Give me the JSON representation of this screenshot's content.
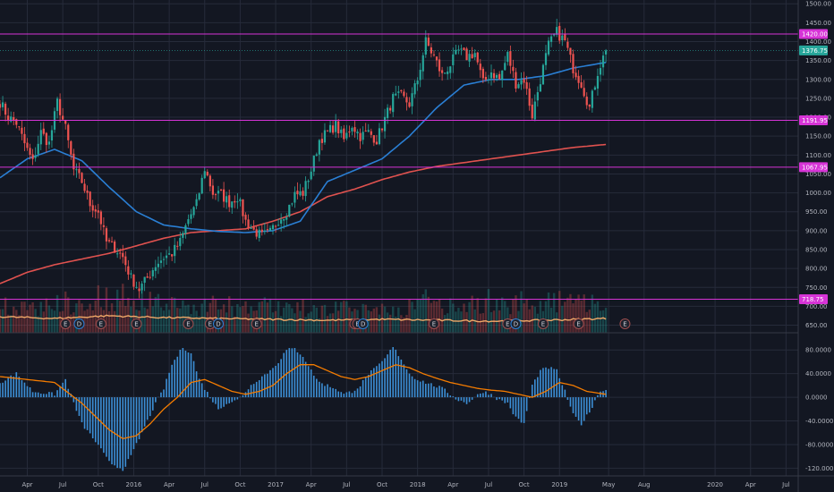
{
  "colors": {
    "background": "#131722",
    "grid": "#262b3a",
    "up": "#26a69a",
    "down": "#ef5350",
    "ma_fast": "#2a7fd4",
    "ma_slow": "#e0524f",
    "vol_ma": "#f0a868",
    "level": "#d633d6",
    "last_price": "#26a69a",
    "macd_line": "#f57c00",
    "macd_hist": "#3c8fd6"
  },
  "price_axis": {
    "min": 630,
    "max": 1510,
    "ticks": [
      "650.00",
      "700.00",
      "750.00",
      "800.00",
      "850.00",
      "900.00",
      "950.00",
      "1000.00",
      "1050.00",
      "1100.00",
      "1150.00",
      "1200.00",
      "1250.00",
      "1300.00",
      "1350.00",
      "1400.00",
      "1450.00",
      "1500.00"
    ]
  },
  "macd_axis": {
    "min": -130,
    "max": 100,
    "ticks": [
      "80.0000",
      "40.0000",
      "0.0000",
      "-40.0000",
      "-80.0000",
      "-120.0000"
    ]
  },
  "x_axis": {
    "ticks": [
      {
        "label": "Apr",
        "idx": 10
      },
      {
        "label": "Jul",
        "idx": 23
      },
      {
        "label": "Oct",
        "idx": 36
      },
      {
        "label": "2016",
        "idx": 49
      },
      {
        "label": "Apr",
        "idx": 62
      },
      {
        "label": "Jul",
        "idx": 75
      },
      {
        "label": "Oct",
        "idx": 88
      },
      {
        "label": "2017",
        "idx": 101
      },
      {
        "label": "Apr",
        "idx": 114
      },
      {
        "label": "Jul",
        "idx": 127
      },
      {
        "label": "Oct",
        "idx": 140
      },
      {
        "label": "2018",
        "idx": 153
      },
      {
        "label": "Apr",
        "idx": 166
      },
      {
        "label": "Jul",
        "idx": 179
      },
      {
        "label": "Oct",
        "idx": 192
      },
      {
        "label": "2019",
        "idx": 205
      },
      {
        "label": "May",
        "idx": 223
      },
      {
        "label": "Aug",
        "idx": 236
      },
      {
        "label": "2020",
        "idx": 262
      },
      {
        "label": "Apr",
        "idx": 275
      },
      {
        "label": "Jul",
        "idx": 288
      }
    ]
  },
  "levels": [
    {
      "label": "1420.00",
      "value": 1420
    },
    {
      "label": "1191.95",
      "value": 1191.95
    },
    {
      "label": "1067.95",
      "value": 1067.95
    },
    {
      "label": "718.75",
      "value": 718.75
    }
  ],
  "last_price": {
    "label": "1376.75",
    "value": 1376.75
  },
  "events": [
    {
      "label": "E",
      "idx": 24
    },
    {
      "label": "D",
      "idx": 29
    },
    {
      "label": "E",
      "idx": 37
    },
    {
      "label": "E",
      "idx": 50
    },
    {
      "label": "E",
      "idx": 69
    },
    {
      "label": "E",
      "idx": 77
    },
    {
      "label": "D",
      "idx": 80
    },
    {
      "label": "E",
      "idx": 94
    },
    {
      "label": "S",
      "idx": 130
    },
    {
      "label": "E",
      "idx": 131
    },
    {
      "label": "D",
      "idx": 133
    },
    {
      "label": "E",
      "idx": 159
    },
    {
      "label": "E",
      "idx": 186
    },
    {
      "label": "D",
      "idx": 189
    },
    {
      "label": "E",
      "idx": 199
    },
    {
      "label": "E",
      "idx": 212
    },
    {
      "label": "E",
      "idx": 229
    }
  ],
  "chart_data": {
    "type": "candlestick",
    "panes": [
      "price",
      "volume",
      "macd"
    ],
    "anchors": {
      "price": [
        [
          0,
          1240
        ],
        [
          3,
          1200
        ],
        [
          6,
          1185
        ],
        [
          9,
          1130
        ],
        [
          12,
          1080
        ],
        [
          15,
          1160
        ],
        [
          18,
          1130
        ],
        [
          21,
          1240
        ],
        [
          24,
          1170
        ],
        [
          27,
          1060
        ],
        [
          30,
          1030
        ],
        [
          33,
          970
        ],
        [
          36,
          950
        ],
        [
          39,
          870
        ],
        [
          42,
          855
        ],
        [
          45,
          830
        ],
        [
          48,
          775
        ],
        [
          51,
          745
        ],
        [
          54,
          775
        ],
        [
          57,
          810
        ],
        [
          60,
          830
        ],
        [
          63,
          840
        ],
        [
          66,
          870
        ],
        [
          69,
          930
        ],
        [
          72,
          970
        ],
        [
          75,
          1065
        ],
        [
          78,
          1000
        ],
        [
          81,
          995
        ],
        [
          84,
          975
        ],
        [
          87,
          990
        ],
        [
          90,
          925
        ],
        [
          93,
          900
        ],
        [
          96,
          885
        ],
        [
          99,
          895
        ],
        [
          102,
          930
        ],
        [
          105,
          950
        ],
        [
          108,
          995
        ],
        [
          111,
          1000
        ],
        [
          114,
          1060
        ],
        [
          117,
          1140
        ],
        [
          120,
          1160
        ],
        [
          123,
          1180
        ],
        [
          126,
          1140
        ],
        [
          129,
          1180
        ],
        [
          132,
          1150
        ],
        [
          135,
          1160
        ],
        [
          138,
          1140
        ],
        [
          141,
          1195
        ],
        [
          144,
          1250
        ],
        [
          147,
          1255
        ],
        [
          150,
          1235
        ],
        [
          153,
          1300
        ],
        [
          156,
          1400
        ],
        [
          159,
          1360
        ],
        [
          162,
          1310
        ],
        [
          165,
          1340
        ],
        [
          168,
          1375
        ],
        [
          171,
          1360
        ],
        [
          174,
          1370
        ],
        [
          177,
          1290
        ],
        [
          180,
          1320
        ],
        [
          183,
          1300
        ],
        [
          186,
          1365
        ],
        [
          189,
          1290
        ],
        [
          192,
          1300
        ],
        [
          195,
          1205
        ],
        [
          198,
          1300
        ],
        [
          201,
          1390
        ],
        [
          204,
          1425
        ],
        [
          207,
          1400
        ],
        [
          210,
          1330
        ],
        [
          213,
          1290
        ],
        [
          216,
          1225
        ],
        [
          219,
          1320
        ],
        [
          222,
          1376.75
        ]
      ],
      "ma_fast": [
        [
          0,
          1040
        ],
        [
          10,
          1090
        ],
        [
          20,
          1115
        ],
        [
          30,
          1085
        ],
        [
          40,
          1015
        ],
        [
          50,
          950
        ],
        [
          60,
          915
        ],
        [
          70,
          905
        ],
        [
          80,
          898
        ],
        [
          90,
          895
        ],
        [
          100,
          900
        ],
        [
          110,
          925
        ],
        [
          120,
          1030
        ],
        [
          130,
          1060
        ],
        [
          140,
          1090
        ],
        [
          150,
          1150
        ],
        [
          160,
          1225
        ],
        [
          170,
          1285
        ],
        [
          180,
          1300
        ],
        [
          190,
          1300
        ],
        [
          200,
          1310
        ],
        [
          210,
          1330
        ],
        [
          222,
          1345
        ]
      ],
      "ma_slow": [
        [
          0,
          760
        ],
        [
          10,
          790
        ],
        [
          20,
          810
        ],
        [
          30,
          825
        ],
        [
          40,
          840
        ],
        [
          50,
          860
        ],
        [
          60,
          880
        ],
        [
          70,
          895
        ],
        [
          80,
          900
        ],
        [
          90,
          905
        ],
        [
          100,
          925
        ],
        [
          110,
          950
        ],
        [
          120,
          990
        ],
        [
          130,
          1010
        ],
        [
          140,
          1035
        ],
        [
          150,
          1055
        ],
        [
          160,
          1070
        ],
        [
          170,
          1080
        ],
        [
          180,
          1090
        ],
        [
          190,
          1100
        ],
        [
          200,
          1110
        ],
        [
          210,
          1120
        ],
        [
          222,
          1128
        ]
      ],
      "macd_hist": [
        [
          0,
          25
        ],
        [
          6,
          40
        ],
        [
          12,
          10
        ],
        [
          20,
          5
        ],
        [
          24,
          30
        ],
        [
          27,
          -10
        ],
        [
          30,
          -45
        ],
        [
          35,
          -75
        ],
        [
          40,
          -110
        ],
        [
          45,
          -122
        ],
        [
          48,
          -100
        ],
        [
          52,
          -60
        ],
        [
          56,
          -20
        ],
        [
          60,
          15
        ],
        [
          63,
          55
        ],
        [
          67,
          85
        ],
        [
          70,
          75
        ],
        [
          73,
          30
        ],
        [
          77,
          0
        ],
        [
          80,
          -20
        ],
        [
          83,
          -10
        ],
        [
          87,
          -5
        ],
        [
          90,
          10
        ],
        [
          93,
          25
        ],
        [
          96,
          35
        ],
        [
          99,
          45
        ],
        [
          102,
          60
        ],
        [
          105,
          80
        ],
        [
          108,
          82
        ],
        [
          111,
          70
        ],
        [
          114,
          45
        ],
        [
          117,
          25
        ],
        [
          120,
          20
        ],
        [
          123,
          15
        ],
        [
          126,
          5
        ],
        [
          129,
          10
        ],
        [
          132,
          20
        ],
        [
          135,
          40
        ],
        [
          138,
          50
        ],
        [
          141,
          65
        ],
        [
          144,
          85
        ],
        [
          147,
          65
        ],
        [
          150,
          40
        ],
        [
          153,
          30
        ],
        [
          156,
          25
        ],
        [
          159,
          20
        ],
        [
          162,
          15
        ],
        [
          165,
          5
        ],
        [
          168,
          -5
        ],
        [
          171,
          -10
        ],
        [
          174,
          0
        ],
        [
          177,
          10
        ],
        [
          180,
          5
        ],
        [
          183,
          -5
        ],
        [
          186,
          -10
        ],
        [
          189,
          -35
        ],
        [
          192,
          -45
        ],
        [
          195,
          20
        ],
        [
          198,
          45
        ],
        [
          201,
          50
        ],
        [
          204,
          45
        ],
        [
          207,
          10
        ],
        [
          210,
          -30
        ],
        [
          213,
          -45
        ],
        [
          216,
          -25
        ],
        [
          219,
          5
        ],
        [
          222,
          15
        ]
      ],
      "macd_signal": [
        [
          0,
          35
        ],
        [
          10,
          30
        ],
        [
          20,
          25
        ],
        [
          30,
          -10
        ],
        [
          40,
          -55
        ],
        [
          45,
          -70
        ],
        [
          50,
          -65
        ],
        [
          55,
          -45
        ],
        [
          60,
          -20
        ],
        [
          65,
          0
        ],
        [
          70,
          25
        ],
        [
          75,
          30
        ],
        [
          80,
          20
        ],
        [
          85,
          10
        ],
        [
          90,
          5
        ],
        [
          95,
          10
        ],
        [
          100,
          20
        ],
        [
          105,
          40
        ],
        [
          110,
          55
        ],
        [
          115,
          55
        ],
        [
          120,
          45
        ],
        [
          125,
          35
        ],
        [
          130,
          30
        ],
        [
          135,
          35
        ],
        [
          140,
          45
        ],
        [
          145,
          55
        ],
        [
          150,
          50
        ],
        [
          155,
          40
        ],
        [
          160,
          32
        ],
        [
          165,
          25
        ],
        [
          170,
          20
        ],
        [
          175,
          15
        ],
        [
          180,
          12
        ],
        [
          185,
          10
        ],
        [
          190,
          5
        ],
        [
          195,
          0
        ],
        [
          200,
          10
        ],
        [
          205,
          25
        ],
        [
          210,
          20
        ],
        [
          215,
          10
        ],
        [
          222,
          5
        ]
      ],
      "volume": [
        [
          0,
          28
        ],
        [
          6,
          30
        ],
        [
          12,
          26
        ],
        [
          18,
          32
        ],
        [
          24,
          35
        ],
        [
          30,
          30
        ],
        [
          36,
          40
        ],
        [
          42,
          38
        ],
        [
          48,
          42
        ],
        [
          54,
          36
        ],
        [
          60,
          34
        ],
        [
          66,
          30
        ],
        [
          72,
          28
        ],
        [
          78,
          32
        ],
        [
          84,
          30
        ],
        [
          90,
          26
        ],
        [
          96,
          32
        ],
        [
          102,
          28
        ],
        [
          108,
          30
        ],
        [
          114,
          24
        ],
        [
          120,
          28
        ],
        [
          126,
          26
        ],
        [
          132,
          24
        ],
        [
          138,
          30
        ],
        [
          144,
          26
        ],
        [
          150,
          28
        ],
        [
          156,
          40
        ],
        [
          162,
          30
        ],
        [
          168,
          26
        ],
        [
          174,
          34
        ],
        [
          180,
          36
        ],
        [
          186,
          32
        ],
        [
          192,
          38
        ],
        [
          198,
          30
        ],
        [
          204,
          36
        ],
        [
          210,
          32
        ],
        [
          216,
          38
        ],
        [
          222,
          30
        ]
      ],
      "vol_ma": [
        [
          0,
          18
        ],
        [
          20,
          16
        ],
        [
          40,
          19
        ],
        [
          60,
          17
        ],
        [
          80,
          16
        ],
        [
          100,
          15
        ],
        [
          120,
          14
        ],
        [
          140,
          15
        ],
        [
          160,
          14
        ],
        [
          180,
          13
        ],
        [
          200,
          14
        ],
        [
          222,
          16
        ]
      ]
    }
  }
}
